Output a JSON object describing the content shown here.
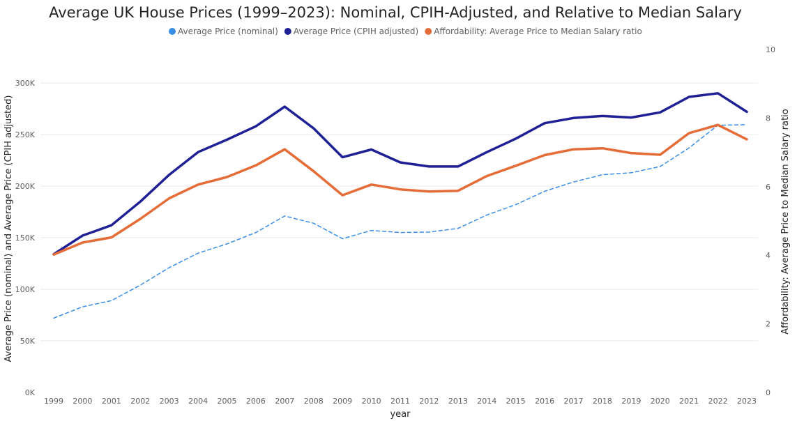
{
  "chart_data": {
    "type": "line",
    "title": "Average UK House Prices (1999–2023): Nominal, CPIH-Adjusted, and Relative to Median Salary",
    "xlabel": "year",
    "ylabel": "Average Price (nominal) and Average Price (CPIH adjusted)",
    "y2label": "Affordability: Average Price to Median Salary ratio",
    "ylim": [
      0,
      300000
    ],
    "y2lim": [
      0,
      10
    ],
    "yticks": [
      "0K",
      "50K",
      "100K",
      "150K",
      "200K",
      "250K",
      "300K"
    ],
    "y2ticks": [
      "0",
      "2",
      "4",
      "6",
      "8",
      "10"
    ],
    "legend_position": "top-center",
    "grid": true,
    "x": [
      "1999",
      "2000",
      "2001",
      "2002",
      "2003",
      "2004",
      "2005",
      "2006",
      "2007",
      "2008",
      "2009",
      "2010",
      "2011",
      "2012",
      "2013",
      "2014",
      "2015",
      "2016",
      "2017",
      "2018",
      "2019",
      "2020",
      "2021",
      "2022",
      "2023"
    ],
    "series": [
      {
        "name": "Average Price (nominal)",
        "axis": "left",
        "color": "#3a8ee6",
        "style": "dashed",
        "values": [
          72000,
          83000,
          89000,
          104000,
          121000,
          135000,
          144000,
          155000,
          171000,
          164000,
          149000,
          157000,
          155000,
          155500,
          159000,
          172000,
          182000,
          195000,
          204000,
          211000,
          213000,
          219000,
          237000,
          259000,
          259500
        ]
      },
      {
        "name": "Average Price (CPIH adjusted)",
        "axis": "left",
        "color": "#1f1f96",
        "style": "solid",
        "values": [
          134000,
          152000,
          162000,
          185000,
          211000,
          233000,
          245000,
          258000,
          277000,
          256000,
          228000,
          235500,
          223000,
          219000,
          219000,
          233000,
          246000,
          261000,
          266000,
          268000,
          266500,
          271500,
          286500,
          290000,
          272000
        ]
      },
      {
        "name": "Affordability: Average Price to Median Salary ratio",
        "axis": "right",
        "color": "#e66c37",
        "style": "solid",
        "values": [
          4.02,
          4.37,
          4.52,
          5.06,
          5.66,
          6.06,
          6.28,
          6.62,
          7.09,
          6.45,
          5.75,
          6.06,
          5.92,
          5.86,
          5.88,
          6.31,
          6.61,
          6.92,
          7.09,
          7.12,
          6.98,
          6.93,
          7.56,
          7.8,
          7.38
        ]
      }
    ]
  }
}
